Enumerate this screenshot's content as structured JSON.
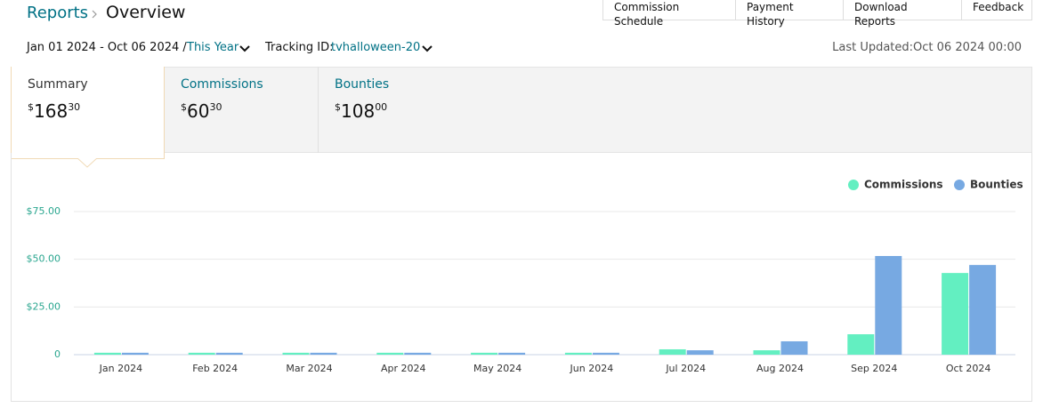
{
  "header": {
    "breadcrumb": "Reports",
    "title": "Overview"
  },
  "nav_tabs": [
    "Commission Schedule",
    "Payment History",
    "Download Reports",
    "Feedback"
  ],
  "filters": {
    "date_range": "Jan 01 2024 - Oct 06 2024 /",
    "period": "This Year",
    "tracking_label": "Tracking ID:",
    "tracking_id": "tvhalloween-20",
    "last_updated": "Last Updated:Oct 06 2024 00:00"
  },
  "summary_tabs": [
    {
      "label": "Summary",
      "currency": "$",
      "amount": "168",
      "cents": "30"
    },
    {
      "label": "Commissions",
      "currency": "$",
      "amount": "60",
      "cents": "30"
    },
    {
      "label": "Bounties",
      "currency": "$",
      "amount": "108",
      "cents": "00"
    }
  ],
  "chart_data": {
    "type": "bar",
    "categories": [
      "Jan 2024",
      "Feb 2024",
      "Mar 2024",
      "Apr 2024",
      "May 2024",
      "Jun 2024",
      "Jul 2024",
      "Aug 2024",
      "Sep 2024",
      "Oct 2024"
    ],
    "series": [
      {
        "name": "Commissions",
        "color": "#63efc1",
        "values": [
          1,
          1,
          1,
          1,
          1,
          1,
          2.8,
          2.3,
          10.7,
          42.8
        ]
      },
      {
        "name": "Bounties",
        "color": "#77a9e2",
        "values": [
          1,
          1,
          1,
          1,
          1,
          1,
          2.3,
          7,
          51.7,
          47
        ]
      }
    ],
    "ylim": [
      0,
      75
    ],
    "yticks": [
      0,
      {
        "value": 25,
        "label": "$25.00"
      },
      {
        "value": 50,
        "label": "$50.00"
      },
      {
        "value": 75,
        "label": "$75.00"
      }
    ],
    "grid": true,
    "legend": "top-right"
  }
}
